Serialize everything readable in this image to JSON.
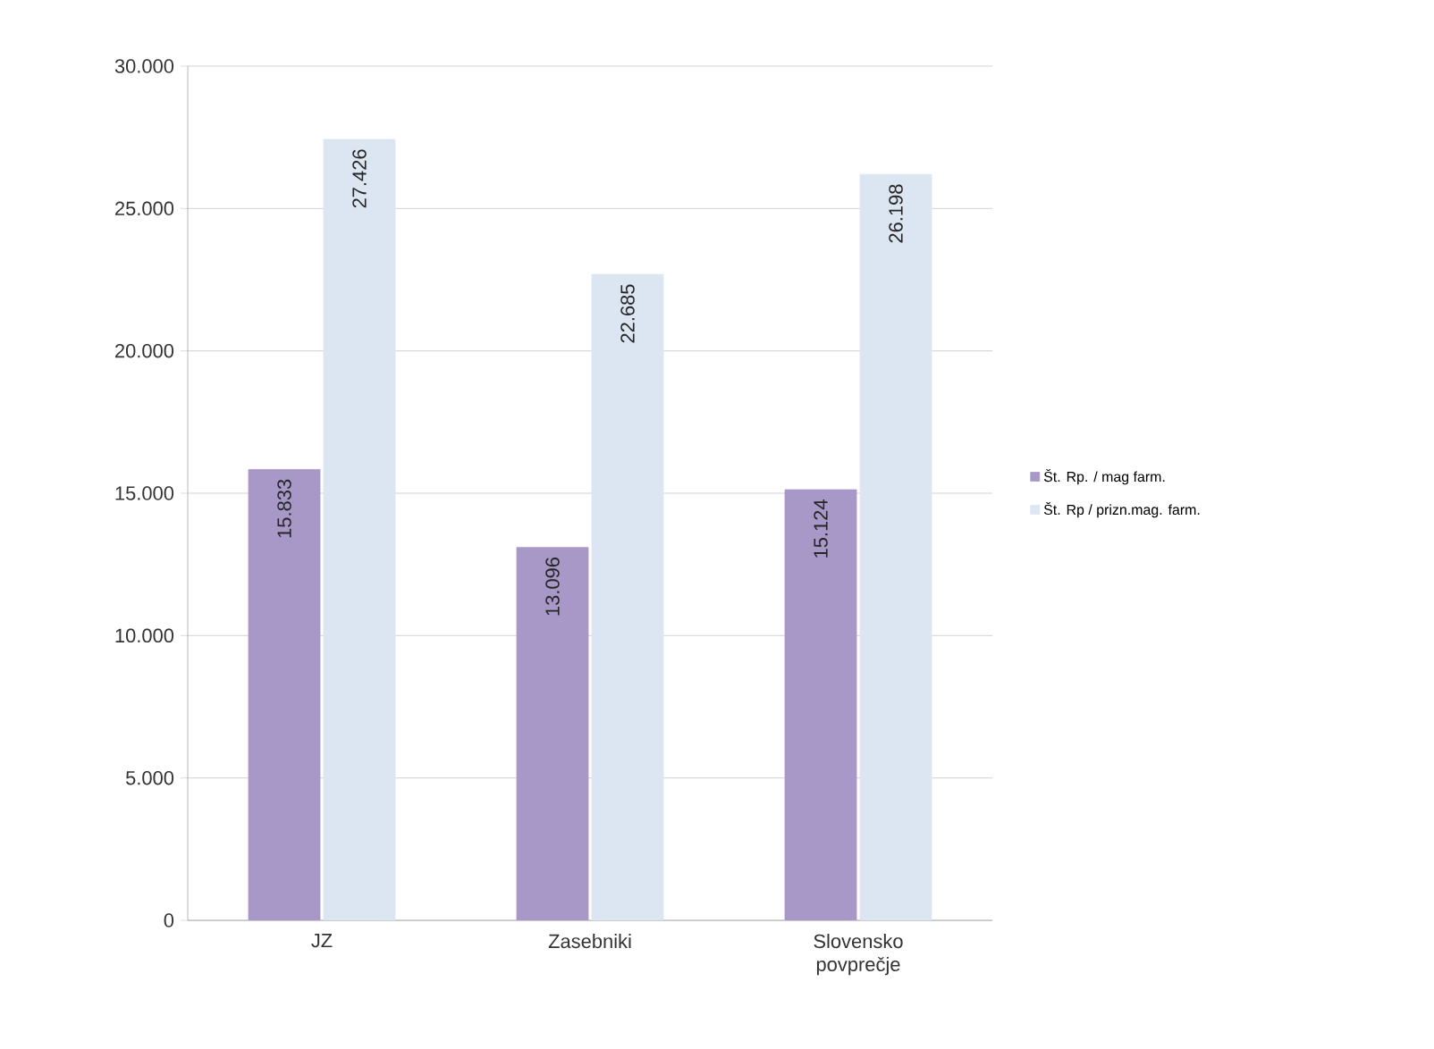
{
  "chart_data": {
    "type": "bar",
    "categories": [
      "JZ",
      "Zasebniki",
      "Slovensko povprečje"
    ],
    "series": [
      {
        "name": "Št. Rp. / mag farm.",
        "color": "#a898c8",
        "values": [
          15833,
          13096,
          15124
        ],
        "value_labels": [
          "15.833",
          "13.096",
          "15.124"
        ]
      },
      {
        "name": "Št. Rp / prizn.mag. farm.",
        "color": "#dce6f2",
        "values": [
          27426,
          22685,
          26198
        ],
        "value_labels": [
          "27.426",
          "22.685",
          "26.198"
        ]
      }
    ],
    "ylim": [
      0,
      30000
    ],
    "yticks": [
      {
        "value": 0,
        "label": "0"
      },
      {
        "value": 5000,
        "label": "5.000"
      },
      {
        "value": 10000,
        "label": "10.000"
      },
      {
        "value": 15000,
        "label": "15.000"
      },
      {
        "value": 20000,
        "label": "20.000"
      },
      {
        "value": 25000,
        "label": "25.000"
      },
      {
        "value": 30000,
        "label": "30.000"
      }
    ],
    "grid": "y",
    "legend": "right"
  }
}
